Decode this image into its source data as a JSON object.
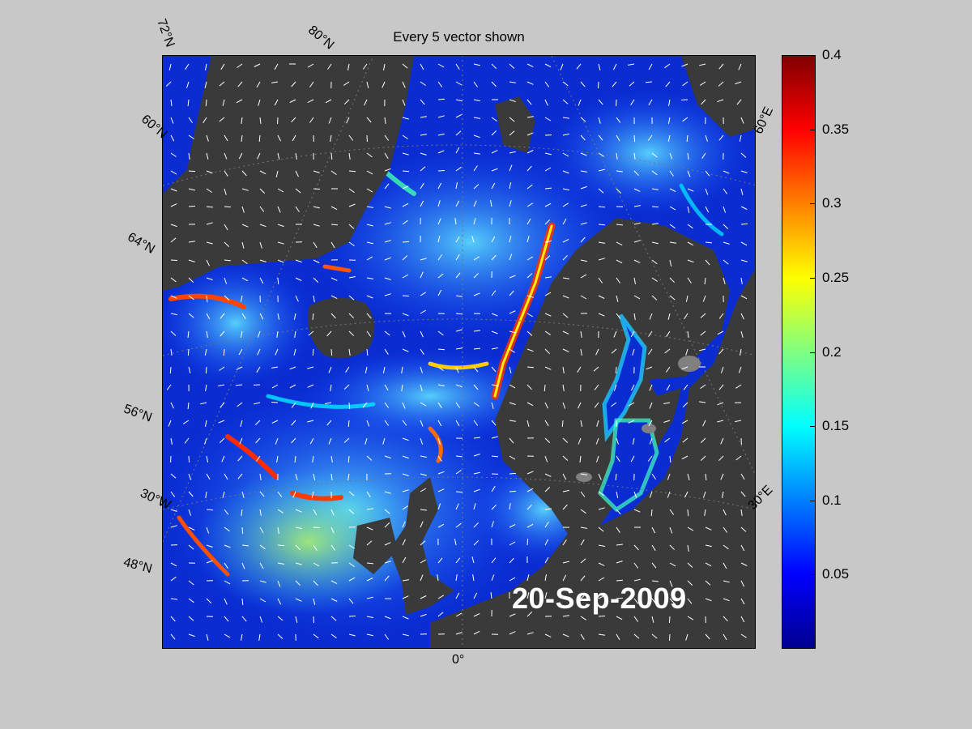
{
  "title": "Every 5 vector shown",
  "date_stamp": "20-Sep-2009",
  "lat_labels": [
    "72°N",
    "80°N",
    "60°N",
    "64°N",
    "56°N",
    "48°N"
  ],
  "lon_labels": [
    "30°W",
    "0°",
    "30°E",
    "60°E"
  ],
  "colorbar": {
    "min": 0,
    "max": 0.4,
    "ticks": [
      "0.4",
      "0.35",
      "0.3",
      "0.25",
      "0.2",
      "0.15",
      "0.1",
      "0.05"
    ],
    "tick_values": [
      0.4,
      0.35,
      0.3,
      0.25,
      0.2,
      0.15,
      0.1,
      0.05
    ],
    "colormap": "jet"
  },
  "colors": {
    "land": "#3a3a3a",
    "background": "#c8c8c8",
    "vectors": "#ffffff"
  }
}
